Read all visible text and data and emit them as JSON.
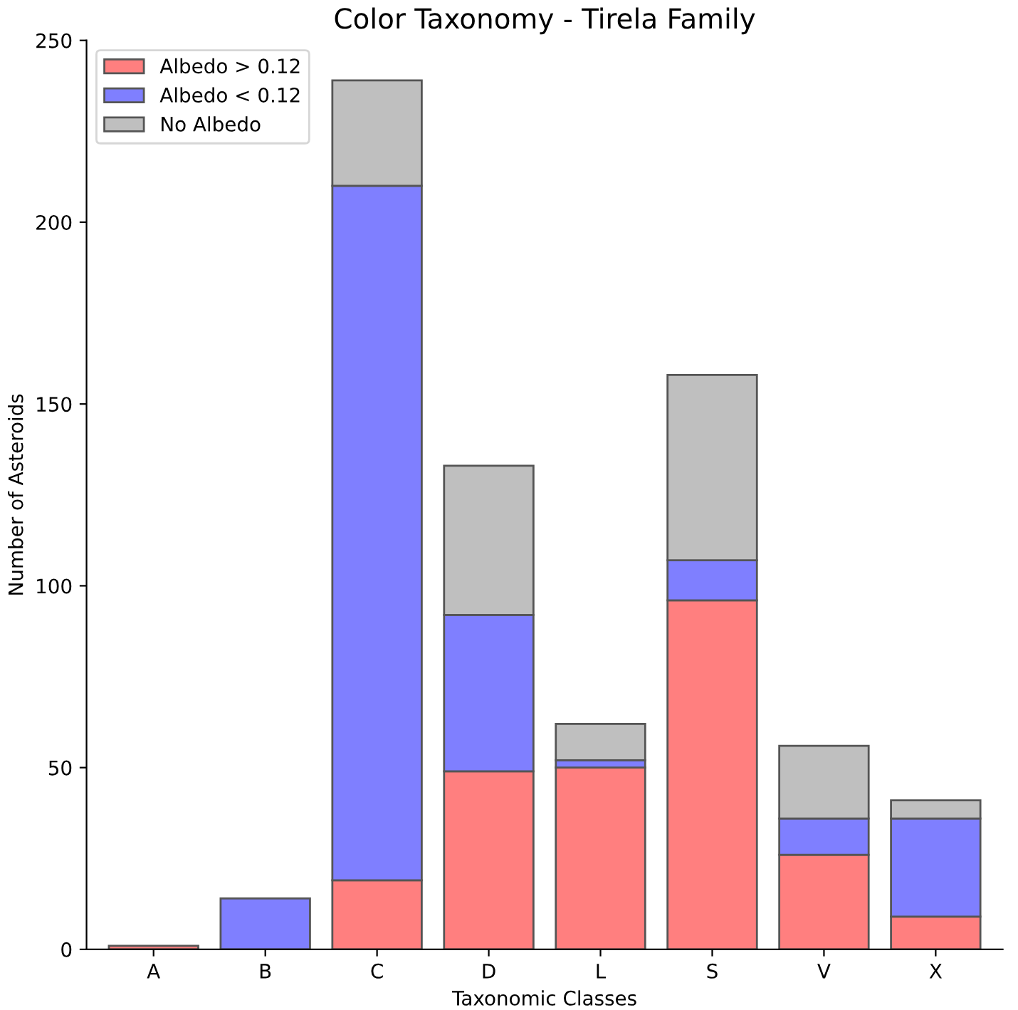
{
  "chart_data": {
    "type": "bar",
    "title": "Color Taxonomy - Tirela Family",
    "xlabel": "Taxonomic Classes",
    "ylabel": "Number of Asteroids",
    "categories": [
      "A",
      "B",
      "C",
      "D",
      "L",
      "S",
      "V",
      "X"
    ],
    "stacked": true,
    "series": [
      {
        "name": "Albedo > 0.12",
        "color": "#ff7f7f",
        "values": [
          1,
          null,
          19,
          49,
          50,
          96,
          26,
          9
        ]
      },
      {
        "name": "Albedo < 0.12",
        "color": "#7f7fff",
        "values": [
          null,
          14,
          191,
          43,
          2,
          11,
          10,
          27
        ]
      },
      {
        "name": "No Albedo",
        "color": "#bfbfbf",
        "values": [
          null,
          null,
          29,
          41,
          10,
          51,
          20,
          5
        ]
      }
    ],
    "ylim": [
      0,
      250
    ],
    "yticks": [
      0,
      50,
      100,
      150,
      200,
      250
    ],
    "grid": false,
    "legend": "top left"
  }
}
